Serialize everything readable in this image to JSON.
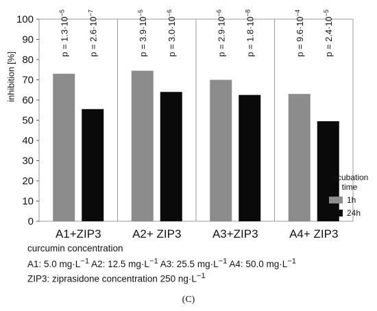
{
  "chart_data": {
    "type": "bar",
    "ylabel": "inhibition [%]",
    "ylim": [
      0,
      100
    ],
    "yticks": [
      0,
      10,
      20,
      30,
      40,
      50,
      60,
      70,
      80,
      90,
      100
    ],
    "categories": [
      "A1+ZIP3",
      "A2+ ZIP3",
      "A3+ZIP3",
      "A4+ ZIP3"
    ],
    "series": [
      {
        "name": "1h",
        "color": "#8c8c8c",
        "values": [
          73,
          74.5,
          70,
          63
        ]
      },
      {
        "name": "24h",
        "color": "#0a0a0a",
        "values": [
          55.5,
          64,
          62.5,
          49.5
        ]
      }
    ],
    "p_values": [
      {
        "m": "1.3",
        "e": "−5"
      },
      {
        "m": "2.6",
        "e": "−7"
      },
      {
        "m": "3.9",
        "e": "−5"
      },
      {
        "m": "3.0",
        "e": "−6"
      },
      {
        "m": "2.9",
        "e": "−6"
      },
      {
        "m": "1.8",
        "e": "−8"
      },
      {
        "m": "9.6",
        "e": "−4"
      },
      {
        "m": "2.4",
        "e": "−5"
      }
    ],
    "legend": {
      "title_line1": "incubation",
      "title_line2": "time",
      "position": "right"
    },
    "xlabel": "curcumin concentration"
  },
  "notes": {
    "concentrations": [
      {
        "name": "A1:",
        "value": "5.0",
        "unit": "mg·L",
        "exp": "−1"
      },
      {
        "name": "A2:",
        "value": "12.5",
        "unit": "mg·L",
        "exp": "−1"
      },
      {
        "name": "A3:",
        "value": "25.5",
        "unit": "mg·L",
        "exp": "−1"
      },
      {
        "name": "A4:",
        "value": "50.0",
        "unit": "mg·L",
        "exp": "−1"
      }
    ],
    "zip_text": "ZIP3: ziprasidone concentration 250 ng·L",
    "zip_exp": "−1"
  },
  "panel_label": "(C)"
}
